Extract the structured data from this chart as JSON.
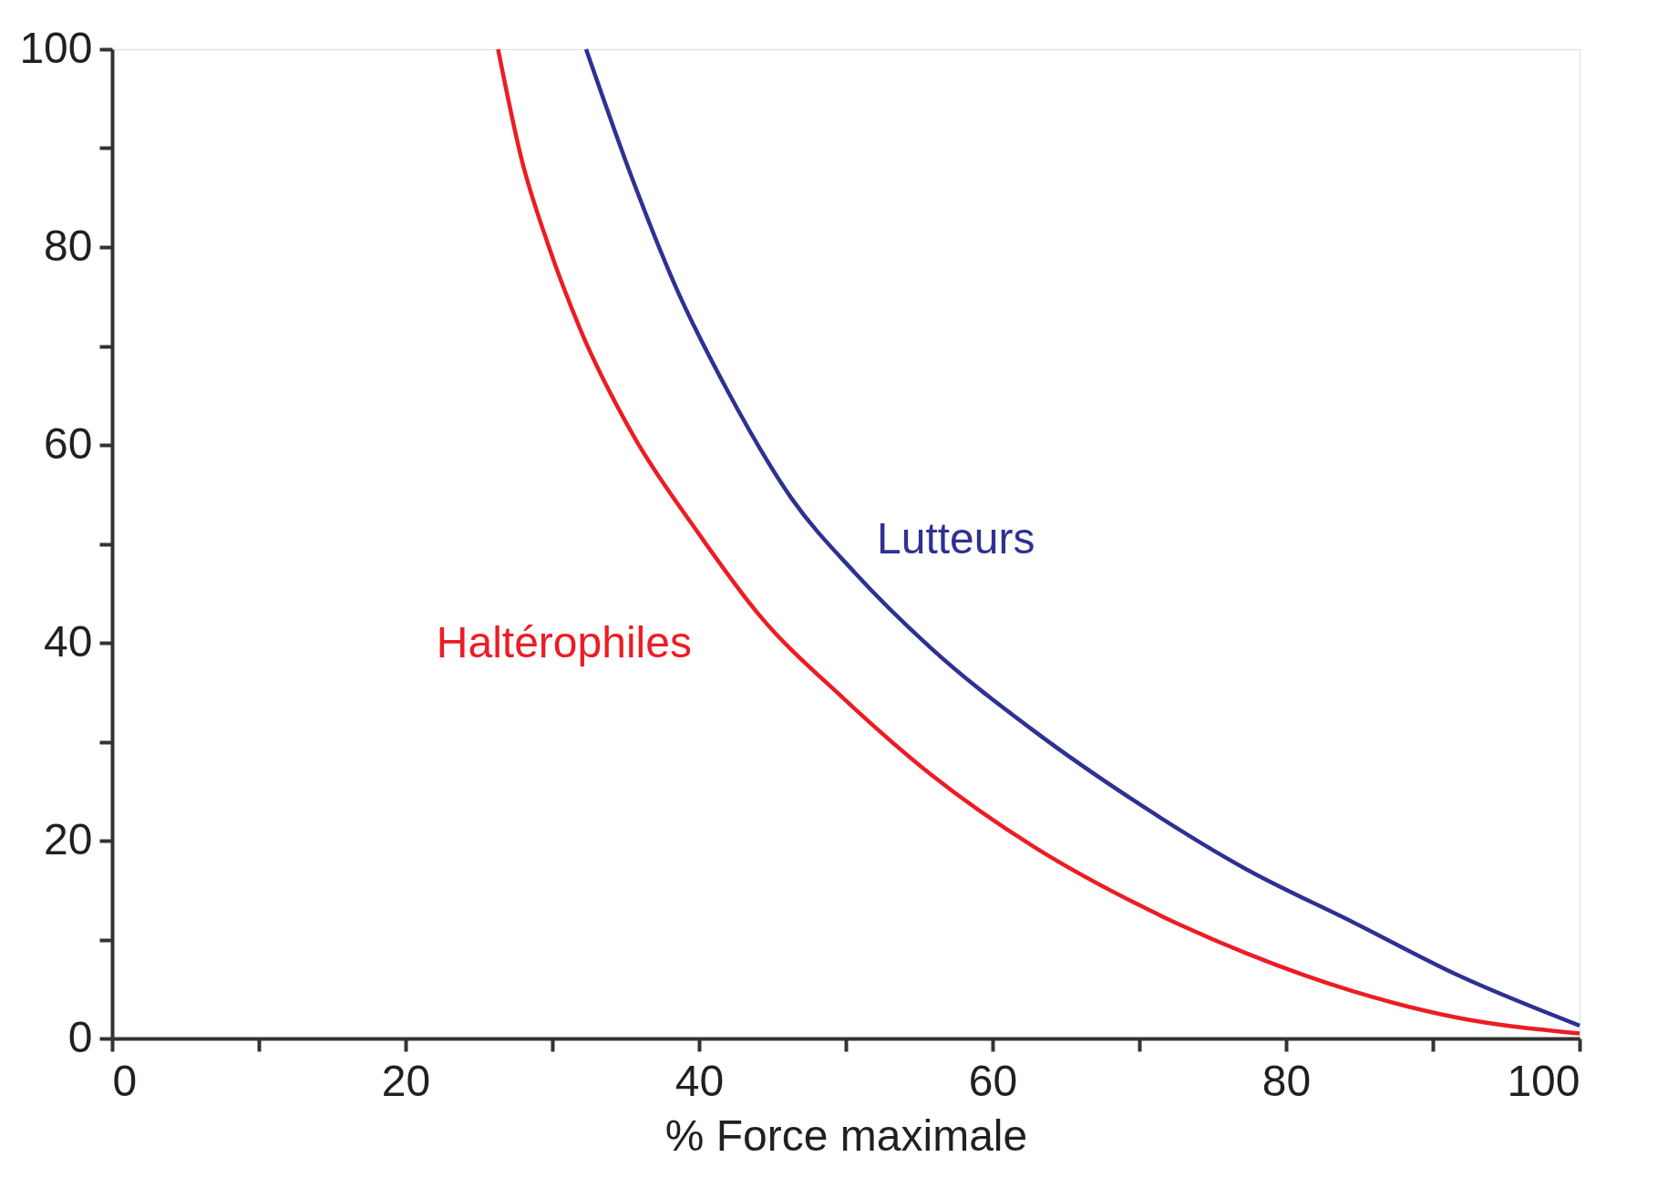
{
  "chart_data": {
    "type": "line",
    "xlabel": "% Force maximale",
    "xlim": [
      0,
      100
    ],
    "ylim": [
      0,
      100
    ],
    "xticks": [
      0,
      {
        "value": 10,
        "label": null
      },
      20,
      {
        "value": 30,
        "label": null
      },
      40,
      {
        "value": 50,
        "label": null
      },
      60,
      {
        "value": 70,
        "label": null
      },
      80,
      {
        "value": 90,
        "label": null
      },
      100
    ],
    "yticks": [
      0,
      {
        "value": 10,
        "label": null
      },
      20,
      {
        "value": 30,
        "label": null
      },
      40,
      {
        "value": 50,
        "label": null
      },
      60,
      {
        "value": 70,
        "label": null
      },
      80,
      {
        "value": 90,
        "label": null
      },
      100
    ],
    "grid": false,
    "marker": "none",
    "line_style": "solid",
    "series": [
      {
        "name": "Haltérophiles",
        "color": "#ed1c24",
        "x": [
          26.3,
          27.9,
          29.7,
          31.9,
          35.5,
          39.8,
          44.1,
          49.9,
          55.7,
          62.9,
          70.1,
          77.3,
          84.5,
          91.7,
          100
        ],
        "values": [
          100,
          88.9,
          80.3,
          71.7,
          61,
          51.4,
          42.8,
          34.3,
          26.8,
          19.3,
          13.4,
          8.6,
          4.8,
          2.1,
          0.5
        ]
      },
      {
        "name": "Lutteurs",
        "color": "#2e3192",
        "x": [
          32.3,
          35.5,
          38.4,
          42,
          46.3,
          50.6,
          55.7,
          62.9,
          70.1,
          77.3,
          84.5,
          91.7,
          100
        ],
        "values": [
          100,
          86.7,
          76,
          65.3,
          54.6,
          47.1,
          39.6,
          31,
          23.6,
          17.1,
          11.8,
          6.4,
          1.3
        ]
      }
    ]
  }
}
